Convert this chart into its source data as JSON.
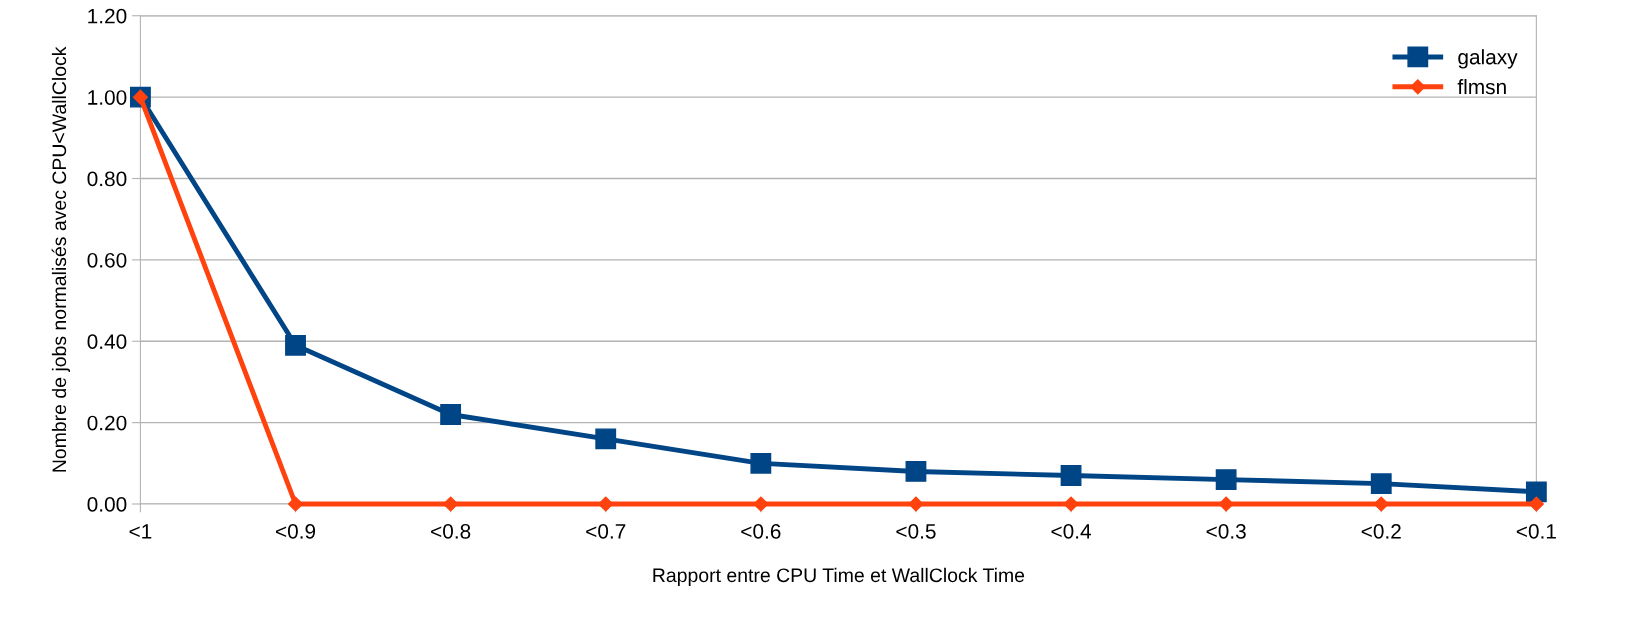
{
  "chart_data": {
    "type": "line",
    "xlabel": "Rapport entre CPU Time et WallClock Time",
    "ylabel": "Nombre de jobs normalisés avec CPU<WallClock",
    "categories": [
      "<1",
      "<0.9",
      "<0.8",
      "<0.7",
      "<0.6",
      "<0.5",
      "<0.4",
      "<0.3",
      "<0.2",
      "<0.1"
    ],
    "series": [
      {
        "name": "galaxy",
        "color": "#004586",
        "marker": "square",
        "values": [
          1.0,
          0.39,
          0.22,
          0.16,
          0.1,
          0.08,
          0.07,
          0.06,
          0.05,
          0.03
        ]
      },
      {
        "name": "flmsn",
        "color": "#ff420e",
        "marker": "diamond",
        "values": [
          1.0,
          0.0,
          0.0,
          0.0,
          0.0,
          0.0,
          0.0,
          0.0,
          0.0,
          0.0
        ]
      }
    ],
    "ylim": [
      0,
      1.2
    ],
    "yticks": [
      {
        "value": 0,
        "label": "0.00"
      },
      {
        "value": 0.2,
        "label": "0.20"
      },
      {
        "value": 0.4,
        "label": "0.40"
      },
      {
        "value": 0.6,
        "label": "0.60"
      },
      {
        "value": 0.8,
        "label": "0.80"
      },
      {
        "value": 1.0,
        "label": "1.00"
      },
      {
        "value": 1.2,
        "label": "1.20"
      }
    ],
    "grid": "y",
    "legend": "top right",
    "line_style": "solid"
  }
}
